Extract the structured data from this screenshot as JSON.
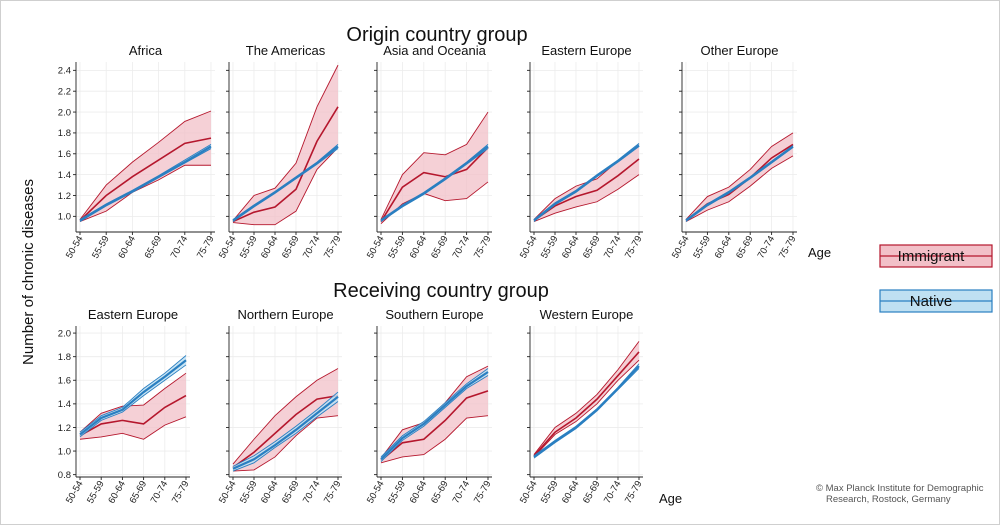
{
  "y_axis_label": "Number of chronic diseases",
  "x_axis_label": "Age",
  "credit": [
    "© Max Planck Institute for Demographic",
    "Research, Rostock, Germany"
  ],
  "legend": [
    {
      "label": "Immigrant",
      "line_color": "#b5172d",
      "fill_color": "#f2c0c8"
    },
    {
      "label": "Native",
      "line_color": "#2a7fc1",
      "fill_color": "#bfe0f2"
    }
  ],
  "sections": [
    {
      "title": "Origin country group"
    },
    {
      "title": "Receiving country group"
    }
  ],
  "chart_data": [
    {
      "type": "line",
      "title": "Africa",
      "categories": [
        "50-54",
        "55-59",
        "60-64",
        "65-69",
        "70-74",
        "75-79"
      ],
      "ylim": [
        0.85,
        2.48
      ],
      "yticks": [
        1.0,
        1.2,
        1.4,
        1.6,
        1.8,
        2.0,
        2.2,
        2.4
      ],
      "series": [
        {
          "name": "Immigrant",
          "values": [
            0.96,
            1.2,
            1.38,
            1.54,
            1.7,
            1.75
          ],
          "lower": [
            0.95,
            1.05,
            1.23,
            1.35,
            1.49,
            1.49
          ],
          "upper": [
            0.97,
            1.3,
            1.52,
            1.71,
            1.91,
            2.01
          ]
        },
        {
          "name": "Native",
          "values": [
            0.96,
            1.11,
            1.24,
            1.38,
            1.52,
            1.67
          ],
          "lower": [
            0.95,
            1.1,
            1.23,
            1.37,
            1.51,
            1.65
          ],
          "upper": [
            0.97,
            1.12,
            1.25,
            1.39,
            1.54,
            1.69
          ]
        }
      ]
    },
    {
      "type": "line",
      "title": "The Americas",
      "categories": [
        "50-54",
        "55-59",
        "60-64",
        "65-69",
        "70-74",
        "75-79"
      ],
      "ylim": [
        0.85,
        2.48
      ],
      "yticks": [
        1.0,
        1.2,
        1.4,
        1.6,
        1.8,
        2.0,
        2.2,
        2.4
      ],
      "series": [
        {
          "name": "Immigrant",
          "values": [
            0.95,
            1.04,
            1.09,
            1.26,
            1.72,
            2.05
          ],
          "lower": [
            0.94,
            0.92,
            0.92,
            1.05,
            1.45,
            1.66
          ],
          "upper": [
            0.96,
            1.2,
            1.27,
            1.51,
            2.05,
            2.45
          ]
        },
        {
          "name": "Native",
          "values": [
            0.96,
            1.1,
            1.23,
            1.37,
            1.51,
            1.67
          ],
          "lower": [
            0.95,
            1.09,
            1.22,
            1.36,
            1.5,
            1.65
          ],
          "upper": [
            0.97,
            1.11,
            1.24,
            1.38,
            1.52,
            1.69
          ]
        }
      ]
    },
    {
      "type": "line",
      "title": "Asia and Oceania",
      "categories": [
        "50-54",
        "55-59",
        "60-64",
        "65-69",
        "70-74",
        "75-79"
      ],
      "ylim": [
        0.85,
        2.48
      ],
      "yticks": [
        1.0,
        1.2,
        1.4,
        1.6,
        1.8,
        2.0,
        2.2,
        2.4
      ],
      "series": [
        {
          "name": "Immigrant",
          "values": [
            0.95,
            1.28,
            1.42,
            1.38,
            1.45,
            1.66
          ],
          "lower": [
            0.93,
            1.12,
            1.22,
            1.15,
            1.17,
            1.33
          ],
          "upper": [
            0.97,
            1.4,
            1.61,
            1.59,
            1.69,
            2.0
          ]
        },
        {
          "name": "Native",
          "values": [
            0.96,
            1.1,
            1.22,
            1.36,
            1.51,
            1.67
          ],
          "lower": [
            0.95,
            1.09,
            1.21,
            1.35,
            1.5,
            1.65
          ],
          "upper": [
            0.97,
            1.11,
            1.23,
            1.37,
            1.52,
            1.69
          ]
        }
      ]
    },
    {
      "type": "line",
      "title": "Eastern Europe",
      "categories": [
        "50-54",
        "55-59",
        "60-64",
        "65-69",
        "70-74",
        "75-79"
      ],
      "ylim": [
        0.85,
        2.48
      ],
      "yticks": [
        1.0,
        1.2,
        1.4,
        1.6,
        1.8,
        2.0,
        2.2,
        2.4
      ],
      "series": [
        {
          "name": "Immigrant",
          "values": [
            0.96,
            1.1,
            1.19,
            1.25,
            1.39,
            1.55
          ],
          "lower": [
            0.95,
            1.03,
            1.09,
            1.14,
            1.26,
            1.4
          ],
          "upper": [
            0.97,
            1.17,
            1.29,
            1.36,
            1.53,
            1.69
          ]
        },
        {
          "name": "Native",
          "values": [
            0.96,
            1.12,
            1.24,
            1.39,
            1.53,
            1.68
          ],
          "lower": [
            0.95,
            1.11,
            1.23,
            1.38,
            1.52,
            1.67
          ],
          "upper": [
            0.97,
            1.13,
            1.25,
            1.4,
            1.54,
            1.7
          ]
        }
      ]
    },
    {
      "type": "line",
      "title": "Other Europe",
      "categories": [
        "50-54",
        "55-59",
        "60-64",
        "65-69",
        "70-74",
        "75-79"
      ],
      "ylim": [
        0.85,
        2.48
      ],
      "yticks": [
        1.0,
        1.2,
        1.4,
        1.6,
        1.8,
        2.0,
        2.2,
        2.4
      ],
      "series": [
        {
          "name": "Immigrant",
          "values": [
            0.96,
            1.12,
            1.21,
            1.37,
            1.56,
            1.69
          ],
          "lower": [
            0.95,
            1.06,
            1.14,
            1.29,
            1.46,
            1.58
          ],
          "upper": [
            0.97,
            1.19,
            1.28,
            1.45,
            1.67,
            1.8
          ]
        },
        {
          "name": "Native",
          "values": [
            0.96,
            1.11,
            1.23,
            1.37,
            1.52,
            1.67
          ],
          "lower": [
            0.95,
            1.1,
            1.22,
            1.36,
            1.51,
            1.66
          ],
          "upper": [
            0.97,
            1.12,
            1.24,
            1.38,
            1.53,
            1.68
          ]
        }
      ]
    },
    {
      "type": "line",
      "title": "Eastern Europe",
      "categories": [
        "50-54",
        "55-59",
        "60-64",
        "65-69",
        "70-74",
        "75-79"
      ],
      "ylim": [
        0.78,
        2.06
      ],
      "yticks": [
        0.8,
        1.0,
        1.2,
        1.4,
        1.6,
        1.8,
        2.0
      ],
      "series": [
        {
          "name": "Immigrant",
          "values": [
            1.13,
            1.23,
            1.26,
            1.23,
            1.37,
            1.47
          ],
          "lower": [
            1.1,
            1.12,
            1.15,
            1.1,
            1.22,
            1.29
          ],
          "upper": [
            1.16,
            1.32,
            1.38,
            1.39,
            1.53,
            1.66
          ]
        },
        {
          "name": "Native",
          "values": [
            1.14,
            1.28,
            1.35,
            1.5,
            1.63,
            1.77
          ],
          "lower": [
            1.12,
            1.26,
            1.33,
            1.47,
            1.6,
            1.73
          ],
          "upper": [
            1.16,
            1.3,
            1.37,
            1.53,
            1.66,
            1.81
          ]
        }
      ]
    },
    {
      "type": "line",
      "title": "Northern Europe",
      "categories": [
        "50-54",
        "55-59",
        "60-64",
        "65-69",
        "70-74",
        "75-79"
      ],
      "ylim": [
        0.78,
        2.06
      ],
      "yticks": [
        0.8,
        1.0,
        1.2,
        1.4,
        1.6,
        1.8,
        2.0
      ],
      "series": [
        {
          "name": "Immigrant",
          "values": [
            0.86,
            0.99,
            1.15,
            1.31,
            1.44,
            1.47
          ],
          "lower": [
            0.83,
            0.84,
            0.95,
            1.13,
            1.28,
            1.3
          ],
          "upper": [
            0.89,
            1.1,
            1.3,
            1.46,
            1.6,
            1.7
          ]
        },
        {
          "name": "Native",
          "values": [
            0.85,
            0.93,
            1.05,
            1.18,
            1.32,
            1.46
          ],
          "lower": [
            0.83,
            0.9,
            1.03,
            1.15,
            1.29,
            1.42
          ],
          "upper": [
            0.87,
            0.96,
            1.08,
            1.21,
            1.35,
            1.5
          ]
        }
      ]
    },
    {
      "type": "line",
      "title": "Southern Europe",
      "categories": [
        "50-54",
        "55-59",
        "60-64",
        "65-69",
        "70-74",
        "75-79"
      ],
      "ylim": [
        0.78,
        2.06
      ],
      "yticks": [
        0.8,
        1.0,
        1.2,
        1.4,
        1.6,
        1.8,
        2.0
      ],
      "series": [
        {
          "name": "Immigrant",
          "values": [
            0.92,
            1.07,
            1.1,
            1.26,
            1.45,
            1.51
          ],
          "lower": [
            0.9,
            0.95,
            0.97,
            1.1,
            1.28,
            1.3
          ],
          "upper": [
            0.94,
            1.18,
            1.24,
            1.41,
            1.63,
            1.72
          ]
        },
        {
          "name": "Native",
          "values": [
            0.93,
            1.11,
            1.23,
            1.39,
            1.55,
            1.67
          ],
          "lower": [
            0.91,
            1.09,
            1.21,
            1.37,
            1.53,
            1.64
          ],
          "upper": [
            0.95,
            1.13,
            1.25,
            1.41,
            1.57,
            1.7
          ]
        }
      ]
    },
    {
      "type": "line",
      "title": "Western Europe",
      "categories": [
        "50-54",
        "55-59",
        "60-64",
        "65-69",
        "70-74",
        "75-79"
      ],
      "ylim": [
        0.78,
        2.06
      ],
      "yticks": [
        0.8,
        1.0,
        1.2,
        1.4,
        1.6,
        1.8,
        2.0
      ],
      "series": [
        {
          "name": "Immigrant",
          "values": [
            0.96,
            1.16,
            1.28,
            1.44,
            1.64,
            1.84
          ],
          "lower": [
            0.95,
            1.14,
            1.25,
            1.4,
            1.6,
            1.77
          ],
          "upper": [
            0.97,
            1.2,
            1.32,
            1.48,
            1.69,
            1.93
          ]
        },
        {
          "name": "Native",
          "values": [
            0.95,
            1.08,
            1.2,
            1.35,
            1.53,
            1.72
          ],
          "lower": [
            0.94,
            1.07,
            1.19,
            1.34,
            1.52,
            1.7
          ],
          "upper": [
            0.96,
            1.09,
            1.21,
            1.36,
            1.54,
            1.74
          ]
        }
      ]
    }
  ]
}
